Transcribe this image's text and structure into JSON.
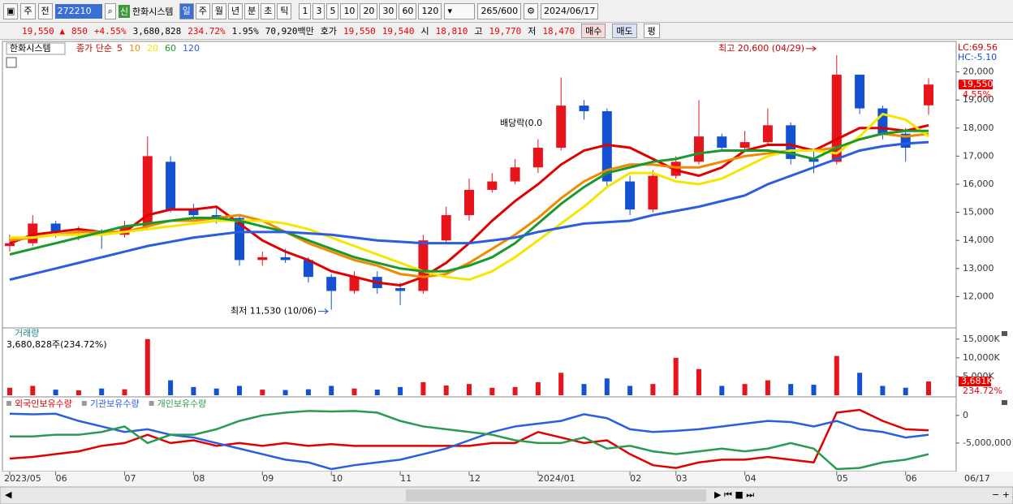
{
  "toolbar": {
    "market": "주",
    "prev": "전",
    "code": "272210",
    "badge": "신",
    "name": "한화시스템",
    "periods": [
      "일",
      "주",
      "월",
      "년",
      "분",
      "초",
      "틱"
    ],
    "intervals": [
      "1",
      "3",
      "5",
      "10",
      "20",
      "30",
      "60",
      "120"
    ],
    "count": "265/600",
    "date": "2024/06/17"
  },
  "info_bar": {
    "price": "19,550 ▲",
    "change": "850",
    "change_pct": "+4.55%",
    "volume": "3,680,828",
    "volume_ratio": "234.72%",
    "turnover": "1.95%",
    "amount": "70,920백만",
    "quote_label": "호가",
    "ask": "19,550",
    "bid": "19,540",
    "open_label": "시",
    "open": "18,810",
    "high_label": "고",
    "high": "19,770",
    "low_label": "저",
    "low": "18,470",
    "buy": "매수",
    "sell": "매도",
    "avg": "평"
  },
  "chart_data": [
    {
      "type": "candlestick",
      "title": "한화시스템",
      "subtitle": "종가 단순",
      "up_color": "#e8141c",
      "down_color": "#1450d2",
      "open": [
        13800,
        13900,
        14600,
        14300,
        14300,
        14200,
        14500,
        16800,
        15100,
        14900,
        14800,
        13300,
        13400,
        13300,
        12700,
        12200,
        12700,
        12300,
        12200,
        14000,
        14900,
        15800,
        16100,
        16600,
        17300,
        18800,
        18600,
        16100,
        15100,
        16300,
        16800,
        17700,
        17300,
        17500,
        18100,
        16900,
        16800,
        19900,
        18700,
        17800,
        18810
      ],
      "high": [
        14200,
        14900,
        14700,
        14500,
        14400,
        14700,
        17700,
        17000,
        15300,
        15200,
        14900,
        13600,
        13700,
        13400,
        12800,
        12900,
        12900,
        12500,
        14200,
        15200,
        16200,
        16400,
        16900,
        17600,
        19800,
        19000,
        18700,
        16300,
        16500,
        17000,
        19000,
        17800,
        17900,
        18700,
        18200,
        17200,
        20600,
        19900,
        18800,
        18000,
        19770
      ],
      "low": [
        13600,
        13800,
        14100,
        14000,
        13700,
        14100,
        14400,
        15000,
        14700,
        14600,
        13100,
        13100,
        13200,
        12500,
        11530,
        12100,
        12100,
        11700,
        12100,
        13900,
        14700,
        15700,
        16000,
        16400,
        17200,
        18300,
        15900,
        14900,
        15000,
        16200,
        16700,
        17200,
        17200,
        17400,
        16700,
        16400,
        16700,
        18500,
        17600,
        16800,
        18470
      ],
      "close": [
        13900,
        14600,
        14300,
        14300,
        14200,
        14500,
        17000,
        15100,
        14900,
        14800,
        13300,
        13400,
        13300,
        12700,
        12200,
        12700,
        12300,
        12200,
        14000,
        14900,
        15800,
        16100,
        16600,
        17300,
        18800,
        18600,
        16100,
        15100,
        16300,
        16800,
        17700,
        17300,
        17500,
        18100,
        16900,
        16800,
        19900,
        18700,
        17800,
        17300,
        19550
      ],
      "series": [
        {
          "name": "5",
          "color": "#e00000",
          "values": [
            13900,
            14200,
            14300,
            14400,
            14300,
            14300,
            14900,
            15100,
            15100,
            15200,
            14600,
            14000,
            13600,
            13300,
            12900,
            12700,
            12500,
            12400,
            12700,
            13200,
            13900,
            14700,
            15400,
            16000,
            16700,
            17200,
            17400,
            17300,
            16900,
            16500,
            16300,
            16600,
            17200,
            17400,
            17400,
            17200,
            17600,
            18000,
            18000,
            17900,
            18100
          ]
        },
        {
          "name": "10",
          "color": "#f08a00",
          "values": [
            14000,
            14100,
            14200,
            14300,
            14300,
            14300,
            14500,
            14700,
            14700,
            14800,
            14900,
            14700,
            14300,
            13900,
            13600,
            13300,
            13100,
            12800,
            12700,
            12800,
            13200,
            13700,
            14200,
            14800,
            15500,
            16100,
            16500,
            16700,
            16700,
            16600,
            16600,
            16800,
            17000,
            17100,
            17200,
            17200,
            17300,
            17600,
            17800,
            17700,
            17800
          ]
        },
        {
          "name": "20",
          "color": "#f5e600",
          "values": [
            14100,
            14100,
            14200,
            14200,
            14200,
            14300,
            14400,
            14500,
            14600,
            14700,
            14700,
            14700,
            14600,
            14400,
            14100,
            13800,
            13500,
            13200,
            12900,
            12700,
            12600,
            12900,
            13400,
            14000,
            14600,
            15200,
            15900,
            16400,
            16400,
            16100,
            16000,
            16200,
            16600,
            17000,
            17200,
            17200,
            17100,
            17700,
            18500,
            18300,
            17700
          ]
        },
        {
          "name": "60",
          "color": "#1a9a2a",
          "values": [
            13500,
            13700,
            13900,
            14100,
            14300,
            14500,
            14600,
            14700,
            14800,
            14800,
            14700,
            14500,
            14300,
            14000,
            13700,
            13400,
            13200,
            13000,
            12900,
            12900,
            13100,
            13400,
            13900,
            14600,
            15300,
            15900,
            16400,
            16600,
            16800,
            16900,
            17100,
            17200,
            17200,
            17200,
            17100,
            16900,
            17300,
            17600,
            17800,
            17900,
            17900
          ]
        },
        {
          "name": "120",
          "color": "#2a5de0",
          "values": [
            12600,
            12800,
            13000,
            13200,
            13400,
            13600,
            13800,
            13950,
            14100,
            14200,
            14300,
            14300,
            14300,
            14250,
            14200,
            14100,
            14000,
            13950,
            13900,
            13900,
            13900,
            14000,
            14100,
            14300,
            14450,
            14600,
            14650,
            14700,
            14900,
            15050,
            15200,
            15400,
            15600,
            16000,
            16300,
            16600,
            16900,
            17200,
            17350,
            17450,
            17500
          ]
        }
      ],
      "ylim": [
        11000,
        21000
      ],
      "yticks": [
        {
          "value": 12000,
          "label": "12,000"
        },
        {
          "value": 13000,
          "label": "13,000"
        },
        {
          "value": 14000,
          "label": "14,000"
        },
        {
          "value": 15000,
          "label": "15,000"
        },
        {
          "value": 16000,
          "label": "16,000"
        },
        {
          "value": 17000,
          "label": "17,000"
        },
        {
          "value": 18000,
          "label": "18,000"
        },
        {
          "value": 19000,
          "label": "19,000"
        },
        {
          "value": 20000,
          "label": "20,000"
        }
      ],
      "annotations": [
        "최고 20,600 (04/29)",
        "최저 11,530 (10/06)",
        "배당락(0.0"
      ],
      "lc_label": "LC:69.56",
      "hc_label": "HC:-5.10",
      "last_label": "19,550",
      "last_change": "4.55%"
    },
    {
      "type": "bar",
      "title": "거래량",
      "subtitle": "3,680,828주(234.72%)",
      "values": [
        2000,
        2500,
        1500,
        1300,
        1800,
        1600,
        15000,
        4000,
        2200,
        1800,
        2500,
        1500,
        1400,
        1600,
        2500,
        1800,
        1500,
        2200,
        3500,
        2600,
        3000,
        2000,
        2200,
        3500,
        6000,
        3000,
        4500,
        2500,
        3000,
        10000,
        7000,
        2500,
        3000,
        4000,
        3000,
        2800,
        10500,
        6000,
        2500,
        2000,
        3681
      ],
      "value_labels": [
        null,
        null,
        null,
        null,
        null,
        null,
        null,
        null,
        null,
        null,
        null,
        null,
        null,
        null,
        null,
        null,
        null,
        null,
        null,
        null,
        null,
        null,
        null,
        null,
        null,
        null,
        null,
        null,
        null,
        null,
        null,
        null,
        null,
        null,
        null,
        null,
        null,
        null,
        null,
        null,
        "3,681K"
      ],
      "ratio_label": "234.72%",
      "ylim": [
        0,
        18000
      ],
      "yticks": [
        {
          "value": 5000,
          "label": "5,000K"
        },
        {
          "value": 10000,
          "label": "10,000K"
        },
        {
          "value": 15000,
          "label": "15,000K"
        }
      ]
    },
    {
      "type": "line",
      "categories": [
        "2023/05",
        null,
        "06",
        null,
        null,
        "07",
        null,
        null,
        "08",
        null,
        null,
        "09",
        null,
        null,
        "10",
        null,
        null,
        "11",
        null,
        null,
        "12",
        null,
        null,
        "2024/01",
        null,
        null,
        null,
        "02",
        null,
        "03",
        null,
        null,
        "04",
        null,
        null,
        null,
        "05",
        null,
        null,
        "06",
        null
      ],
      "x_end_label": "06/17",
      "series": [
        {
          "name": "외국인보유수량",
          "color": "#e00000",
          "values": [
            -7800000,
            -7500000,
            -7000000,
            -6500000,
            -5500000,
            -5000000,
            -3500000,
            -5000000,
            -4500000,
            -5500000,
            -5000000,
            -5500000,
            -5000000,
            -5500000,
            -5200000,
            -5500000,
            -5500000,
            -5500000,
            -5500000,
            -5500000,
            -5500000,
            -5000000,
            -5000000,
            -3000000,
            -4000000,
            -5000000,
            -4500000,
            -7000000,
            -9000000,
            -9500000,
            -8500000,
            -8000000,
            -8000000,
            -7500000,
            -8000000,
            -8500000,
            500000,
            1000000,
            -1000000,
            -2500000,
            -2700000
          ]
        },
        {
          "name": "기관보유수량",
          "color": "#2a5de0",
          "values": [
            300000,
            200000,
            300000,
            -1000000,
            -2000000,
            -3000000,
            -2500000,
            -3500000,
            -4000000,
            -5000000,
            -6000000,
            -7000000,
            -8000000,
            -8500000,
            -9700000,
            -9000000,
            -8500000,
            -8000000,
            -7000000,
            -6000000,
            -4500000,
            -3000000,
            -2000000,
            -1500000,
            -1000000,
            200000,
            -500000,
            -2500000,
            -3000000,
            -2800000,
            -2500000,
            -2000000,
            -1500000,
            -1000000,
            -1200000,
            -2000000,
            -1000000,
            -2500000,
            -3000000,
            -4000000,
            -3500000
          ]
        },
        {
          "name": "개인보유수량",
          "color": "#2a9a50",
          "values": [
            -3800000,
            -3800000,
            -3500000,
            -3500000,
            -3000000,
            -2000000,
            -5000000,
            -3500000,
            -3500000,
            -2500000,
            -1000000,
            0,
            500000,
            800000,
            700000,
            800000,
            500000,
            -1000000,
            -2000000,
            -2500000,
            -3000000,
            -3500000,
            -4500000,
            -5000000,
            -5000000,
            -4000000,
            -6000000,
            -5500000,
            -6500000,
            -7000000,
            -6500000,
            -6000000,
            -6500000,
            -6000000,
            -5000000,
            -6000000,
            -9700000,
            -9500000,
            -8500000,
            -8000000,
            -7000000
          ]
        }
      ],
      "ylim": [
        -10000000,
        3200000
      ],
      "yticks": [
        0,
        {
          "value": -5000000,
          "label": "-5,000,000"
        }
      ]
    }
  ]
}
